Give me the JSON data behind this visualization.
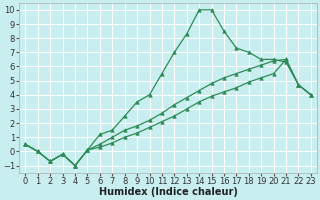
{
  "xlabel": "Humidex (Indice chaleur)",
  "xlim": [
    -0.5,
    23.5
  ],
  "ylim": [
    -1.5,
    10.5
  ],
  "xticks": [
    0,
    1,
    2,
    3,
    4,
    5,
    6,
    7,
    8,
    9,
    10,
    11,
    12,
    13,
    14,
    15,
    16,
    17,
    18,
    19,
    20,
    21,
    22,
    23
  ],
  "yticks": [
    -1,
    0,
    1,
    2,
    3,
    4,
    5,
    6,
    7,
    8,
    9,
    10
  ],
  "color": "#2E8B57",
  "bg_color": "#C8EEF0",
  "grid_color": "#B8DDE0",
  "line1_x": [
    0,
    1,
    2,
    3,
    4,
    5,
    6,
    7,
    8,
    9,
    10,
    11,
    12,
    13,
    14,
    15,
    16,
    17,
    18,
    19,
    20,
    21,
    22,
    23
  ],
  "line1_y": [
    0.5,
    0.0,
    -0.7,
    -0.2,
    -1.0,
    0.1,
    1.2,
    1.5,
    2.5,
    3.5,
    4.0,
    5.5,
    7.0,
    8.3,
    10.0,
    10.0,
    8.5,
    7.3,
    7.0,
    6.5,
    6.5,
    6.3,
    4.7,
    4.0
  ],
  "line2_x": [
    0,
    1,
    2,
    3,
    4,
    5,
    6,
    7,
    8,
    9,
    10,
    11,
    12,
    13,
    14,
    15,
    16,
    17,
    18,
    19,
    20,
    21,
    22,
    23
  ],
  "line2_y": [
    0.5,
    0.0,
    -0.7,
    -0.2,
    -1.0,
    0.1,
    0.5,
    1.0,
    1.5,
    1.8,
    2.2,
    2.7,
    3.3,
    3.8,
    4.3,
    4.8,
    5.2,
    5.5,
    5.8,
    6.1,
    6.4,
    6.5,
    4.7,
    4.0
  ],
  "line3_x": [
    0,
    1,
    2,
    3,
    4,
    5,
    6,
    7,
    8,
    9,
    10,
    11,
    12,
    13,
    14,
    15,
    16,
    17,
    18,
    19,
    20,
    21,
    22,
    23
  ],
  "line3_y": [
    0.5,
    0.0,
    -0.7,
    -0.2,
    -1.0,
    0.1,
    0.3,
    0.6,
    1.0,
    1.3,
    1.7,
    2.1,
    2.5,
    3.0,
    3.5,
    3.9,
    4.2,
    4.5,
    4.9,
    5.2,
    5.5,
    6.5,
    4.7,
    4.0
  ],
  "label_fontsize": 7,
  "tick_fontsize": 6
}
